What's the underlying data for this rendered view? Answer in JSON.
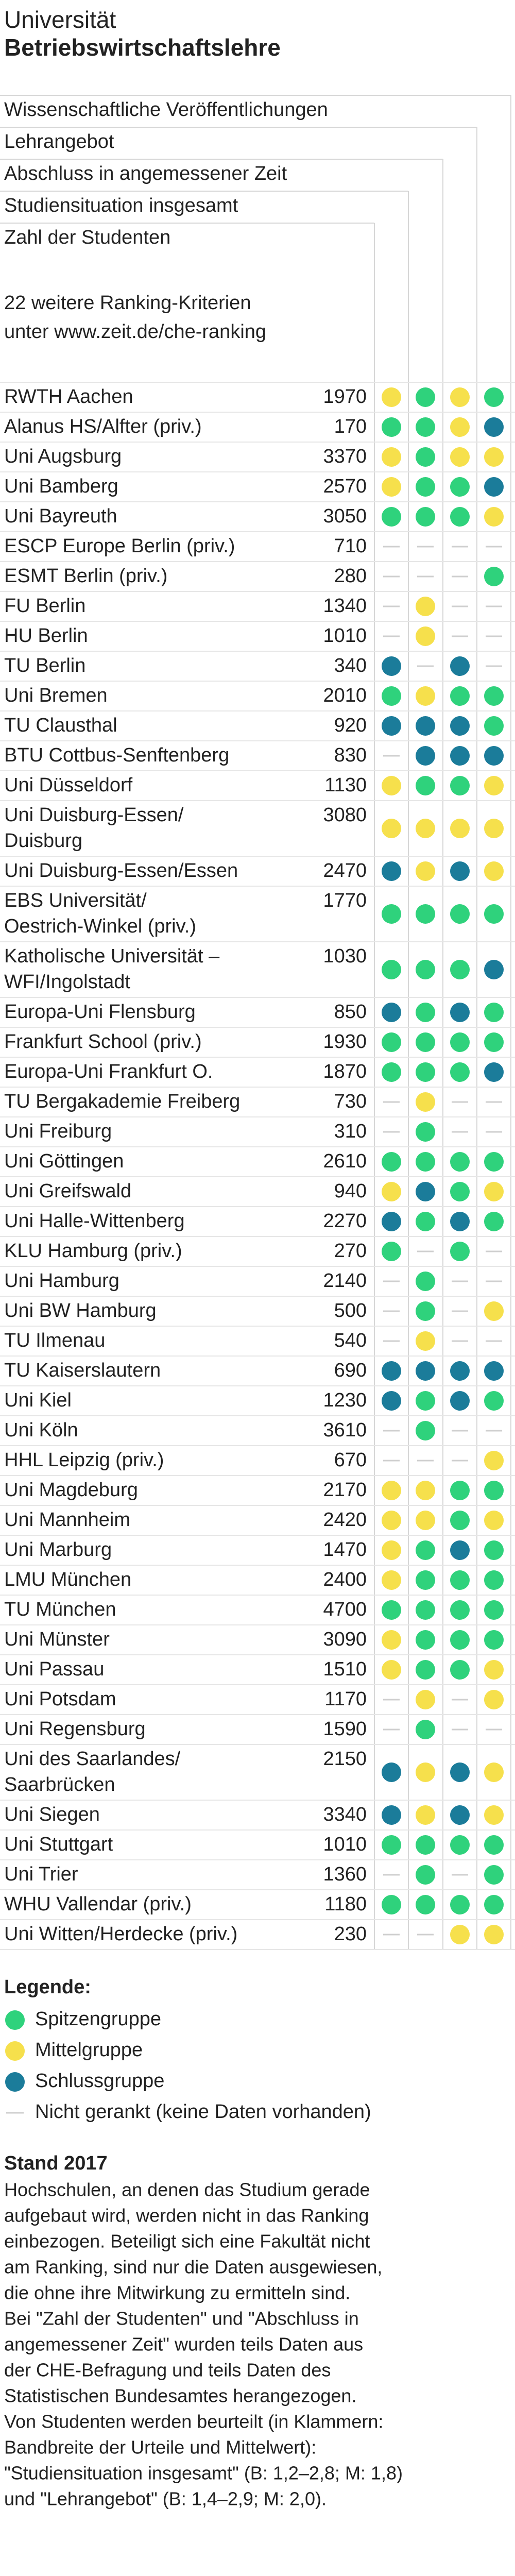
{
  "header": {
    "title": "Universität",
    "subtitle": "Betriebswirtschaftslehre"
  },
  "columns": [
    "Wissenschaftliche Veröffentlichungen",
    "Lehrangebot",
    "Abschluss in angemessener Zeit",
    "Studiensituation insgesamt",
    "Zahl der Studenten"
  ],
  "criteria": [
    "22 weitere Ranking-Kriterien",
    "unter www.zeit.de/che-ranking"
  ],
  "rows": [
    {
      "name": [
        "RWTH Aachen"
      ],
      "students": 1970,
      "ratings": [
        1,
        0,
        1,
        0
      ]
    },
    {
      "name": [
        "Alanus HS/Alfter (priv.)"
      ],
      "students": 170,
      "ratings": [
        0,
        0,
        1,
        2
      ]
    },
    {
      "name": [
        "Uni Augsburg"
      ],
      "students": 3370,
      "ratings": [
        1,
        0,
        1,
        1
      ]
    },
    {
      "name": [
        "Uni Bamberg"
      ],
      "students": 2570,
      "ratings": [
        1,
        0,
        0,
        2
      ]
    },
    {
      "name": [
        "Uni Bayreuth"
      ],
      "students": 3050,
      "ratings": [
        0,
        0,
        0,
        1
      ]
    },
    {
      "name": [
        "ESCP Europe Berlin (priv.)"
      ],
      "students": 710,
      "ratings": [
        3,
        3,
        3,
        3
      ]
    },
    {
      "name": [
        "ESMT Berlin (priv.)"
      ],
      "students": 280,
      "ratings": [
        3,
        3,
        3,
        0
      ]
    },
    {
      "name": [
        "FU Berlin"
      ],
      "students": 1340,
      "ratings": [
        3,
        1,
        3,
        3
      ]
    },
    {
      "name": [
        "HU Berlin"
      ],
      "students": 1010,
      "ratings": [
        3,
        1,
        3,
        3
      ]
    },
    {
      "name": [
        "TU Berlin"
      ],
      "students": 340,
      "ratings": [
        2,
        3,
        2,
        3
      ]
    },
    {
      "name": [
        "Uni Bremen"
      ],
      "students": 2010,
      "ratings": [
        0,
        1,
        0,
        0
      ]
    },
    {
      "name": [
        "TU Clausthal"
      ],
      "students": 920,
      "ratings": [
        2,
        2,
        2,
        0
      ]
    },
    {
      "name": [
        "BTU Cottbus-Senftenberg"
      ],
      "students": 830,
      "ratings": [
        3,
        2,
        2,
        2
      ]
    },
    {
      "name": [
        "Uni Düsseldorf"
      ],
      "students": 1130,
      "ratings": [
        1,
        0,
        0,
        1
      ]
    },
    {
      "name": [
        "Uni Duisburg-Essen/",
        "Duisburg"
      ],
      "students": 3080,
      "ratings": [
        1,
        1,
        1,
        1
      ]
    },
    {
      "name": [
        "Uni Duisburg-Essen/Essen"
      ],
      "students": 2470,
      "ratings": [
        2,
        1,
        2,
        1
      ]
    },
    {
      "name": [
        "EBS Universität/",
        "Oestrich-Winkel (priv.)"
      ],
      "students": 1770,
      "ratings": [
        0,
        0,
        0,
        0
      ]
    },
    {
      "name": [
        "Katholische Universität –",
        "WFI/Ingolstadt"
      ],
      "students": 1030,
      "ratings": [
        0,
        0,
        0,
        2
      ]
    },
    {
      "name": [
        "Europa-Uni Flensburg"
      ],
      "students": 850,
      "ratings": [
        2,
        0,
        2,
        0
      ]
    },
    {
      "name": [
        "Frankfurt School (priv.)"
      ],
      "students": 1930,
      "ratings": [
        0,
        0,
        0,
        0
      ]
    },
    {
      "name": [
        "Europa-Uni Frankfurt O."
      ],
      "students": 1870,
      "ratings": [
        0,
        0,
        0,
        2
      ]
    },
    {
      "name": [
        "TU Bergakademie Freiberg"
      ],
      "students": 730,
      "ratings": [
        3,
        1,
        3,
        3
      ]
    },
    {
      "name": [
        "Uni Freiburg"
      ],
      "students": 310,
      "ratings": [
        3,
        0,
        3,
        3
      ]
    },
    {
      "name": [
        "Uni Göttingen"
      ],
      "students": 2610,
      "ratings": [
        0,
        0,
        0,
        0
      ]
    },
    {
      "name": [
        "Uni Greifswald"
      ],
      "students": 940,
      "ratings": [
        1,
        2,
        0,
        1
      ]
    },
    {
      "name": [
        "Uni Halle-Wittenberg"
      ],
      "students": 2270,
      "ratings": [
        2,
        0,
        2,
        0
      ]
    },
    {
      "name": [
        "KLU Hamburg (priv.)"
      ],
      "students": 270,
      "ratings": [
        0,
        3,
        0,
        3
      ]
    },
    {
      "name": [
        "Uni Hamburg"
      ],
      "students": 2140,
      "ratings": [
        3,
        0,
        3,
        3
      ]
    },
    {
      "name": [
        "Uni BW Hamburg"
      ],
      "students": 500,
      "ratings": [
        3,
        0,
        3,
        1
      ]
    },
    {
      "name": [
        "TU Ilmenau"
      ],
      "students": 540,
      "ratings": [
        3,
        1,
        3,
        3
      ]
    },
    {
      "name": [
        "TU Kaiserslautern"
      ],
      "students": 690,
      "ratings": [
        2,
        2,
        2,
        2
      ]
    },
    {
      "name": [
        "Uni Kiel"
      ],
      "students": 1230,
      "ratings": [
        2,
        0,
        2,
        0
      ]
    },
    {
      "name": [
        "Uni Köln"
      ],
      "students": 3610,
      "ratings": [
        3,
        0,
        3,
        3
      ]
    },
    {
      "name": [
        "HHL Leipzig (priv.)"
      ],
      "students": 670,
      "ratings": [
        3,
        3,
        3,
        1
      ]
    },
    {
      "name": [
        "Uni Magdeburg"
      ],
      "students": 2170,
      "ratings": [
        1,
        1,
        0,
        0
      ]
    },
    {
      "name": [
        "Uni Mannheim"
      ],
      "students": 2420,
      "ratings": [
        1,
        1,
        0,
        1
      ]
    },
    {
      "name": [
        "Uni Marburg"
      ],
      "students": 1470,
      "ratings": [
        1,
        0,
        2,
        0
      ]
    },
    {
      "name": [
        "LMU München"
      ],
      "students": 2400,
      "ratings": [
        1,
        0,
        0,
        0
      ]
    },
    {
      "name": [
        "TU München"
      ],
      "students": 4700,
      "ratings": [
        0,
        0,
        0,
        0
      ]
    },
    {
      "name": [
        "Uni Münster"
      ],
      "students": 3090,
      "ratings": [
        1,
        0,
        0,
        0
      ]
    },
    {
      "name": [
        "Uni Passau"
      ],
      "students": 1510,
      "ratings": [
        1,
        0,
        0,
        1
      ]
    },
    {
      "name": [
        "Uni Potsdam"
      ],
      "students": 1170,
      "ratings": [
        3,
        1,
        3,
        1
      ]
    },
    {
      "name": [
        "Uni Regensburg"
      ],
      "students": 1590,
      "ratings": [
        3,
        0,
        3,
        3
      ]
    },
    {
      "name": [
        "Uni des Saarlandes/",
        "Saarbrücken"
      ],
      "students": 2150,
      "ratings": [
        2,
        1,
        2,
        1
      ]
    },
    {
      "name": [
        "Uni Siegen"
      ],
      "students": 3340,
      "ratings": [
        2,
        1,
        2,
        1
      ]
    },
    {
      "name": [
        "Uni Stuttgart"
      ],
      "students": 1010,
      "ratings": [
        0,
        0,
        0,
        0
      ]
    },
    {
      "name": [
        "Uni Trier"
      ],
      "students": 1360,
      "ratings": [
        3,
        0,
        3,
        0
      ]
    },
    {
      "name": [
        "WHU Vallendar (priv.)"
      ],
      "students": 1180,
      "ratings": [
        0,
        0,
        0,
        0
      ]
    },
    {
      "name": [
        "Uni Witten/Herdecke (priv.)"
      ],
      "students": 230,
      "ratings": [
        3,
        3,
        1,
        1
      ]
    }
  ],
  "legend": {
    "title": "Legende:",
    "items": [
      {
        "label": "Spitzengruppe",
        "color": "#2fd27c"
      },
      {
        "label": "Mittelgruppe",
        "color": "#f6e04c"
      },
      {
        "label": "Schlussgruppe",
        "color": "#1b7c9a"
      },
      {
        "label": "Nicht gerankt (keine Daten vorhanden)",
        "color": "#cfcfcf"
      }
    ]
  },
  "stand": {
    "title": "Stand 2017",
    "lines": [
      "Hochschulen, an denen das Studium gerade",
      "aufgebaut wird, werden nicht in das Ranking",
      "einbezogen. Beteiligt sich eine Fakultät nicht",
      "am Ranking, sind nur die Daten ausgewiesen,",
      "die ohne ihre Mitwirkung zu ermitteln sind.",
      "Bei \"Zahl der Studenten\" und \"Abschluss in",
      "angemessener Zeit\" wurden teils Daten aus",
      "der CHE-Befragung und teils Daten des",
      "Statistischen Bundesamtes herangezogen.",
      "Von Studenten werden beurteilt (in Klammern:",
      "Bandbreite der Urteile und Mittelwert):",
      "\"Studiensituation insgesamt\" (B: 1,2–2,8; M: 1,8)",
      "und \"Lehrangebot\"  (B: 1,4–2,9; M: 2,0)."
    ]
  }
}
